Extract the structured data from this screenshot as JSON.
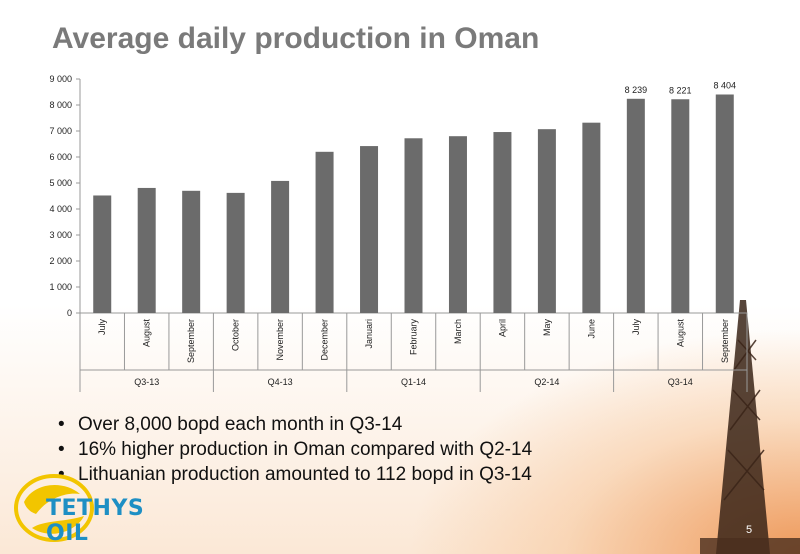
{
  "slide": {
    "title": "Average daily production in Oman",
    "page_number": "5",
    "logo_text": "TETHYS OIL",
    "bullets": [
      "Over 8,000 bopd each month in Q3-14",
      "16% higher production in Oman compared with Q2-14",
      "Lithuanian production amounted to 112 bopd in Q3-14"
    ]
  },
  "chart_data": {
    "type": "bar",
    "title": "",
    "xlabel": "",
    "ylabel": "",
    "ylim": [
      0,
      9000
    ],
    "yticks": [
      0,
      1000,
      2000,
      3000,
      4000,
      5000,
      6000,
      7000,
      8000,
      9000
    ],
    "ytick_labels": [
      "0",
      "1 000",
      "2 000",
      "3 000",
      "4 000",
      "5 000",
      "6 000",
      "7 000",
      "8 000",
      "9 000"
    ],
    "categories": [
      "July",
      "August",
      "September",
      "October",
      "November",
      "December",
      "Januari",
      "February",
      "March",
      "April",
      "May",
      "June",
      "July",
      "August",
      "September"
    ],
    "values": [
      4520,
      4810,
      4700,
      4620,
      5080,
      6200,
      6420,
      6720,
      6800,
      6960,
      7070,
      7320,
      8239,
      8221,
      8404
    ],
    "data_labels": [
      "",
      "",
      "",
      "",
      "",
      "",
      "",
      "",
      "",
      "",
      "",
      "",
      "8 239",
      "8 221",
      "8 404"
    ],
    "groups": [
      {
        "label": "Q3-13",
        "count": 3
      },
      {
        "label": "Q4-13",
        "count": 3
      },
      {
        "label": "Q1-14",
        "count": 3
      },
      {
        "label": "Q2-14",
        "count": 3
      },
      {
        "label": "Q3-14",
        "count": 3
      }
    ],
    "bar_color": "#6b6b6b",
    "grid": false
  }
}
